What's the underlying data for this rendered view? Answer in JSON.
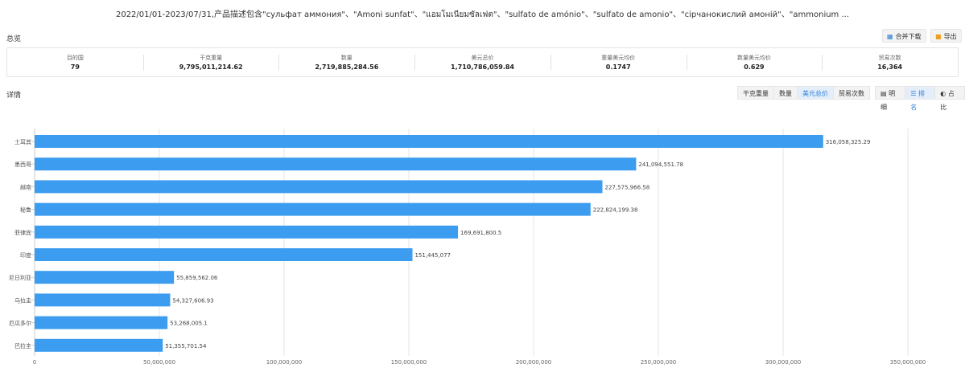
{
  "header": {
    "title": "2022/01/01-2023/07/31,产品描述包含\"сульфат аммония\"、\"Amoni sunfat\"、\"แอมโมเนียมซัลเฟต\"、\"sulfato de amónio\"、\"sulfato de amonio\"、\"сірчанокислий амоній\"、\"ammonium ..."
  },
  "overview": {
    "label": "总览",
    "merge_download_label": "合并下载",
    "merge_download_icon": "grid-icon",
    "export_label": "导出",
    "export_icon": "export-icon",
    "stats": [
      {
        "label": "目的国",
        "value": "79"
      },
      {
        "label": "干克重量",
        "value": "9,795,011,214.62"
      },
      {
        "label": "数量",
        "value": "2,719,885,284.56"
      },
      {
        "label": "美元总价",
        "value": "1,710,786,059.84"
      },
      {
        "label": "重量美元均价",
        "value": "0.1747"
      },
      {
        "label": "数量美元均价",
        "value": "0.629"
      },
      {
        "label": "贸易次数",
        "value": "16,364"
      }
    ]
  },
  "details": {
    "label": "详情",
    "metric_tabs": [
      "干克重量",
      "数量",
      "美元总价",
      "贸易次数"
    ],
    "active_metric": "美元总价",
    "view_tabs": [
      {
        "label": "明细",
        "icon": "table-icon"
      },
      {
        "label": "排名",
        "icon": "ranking-icon"
      },
      {
        "label": "占比",
        "icon": "donut-icon"
      }
    ],
    "active_view": "排名"
  },
  "colors": {
    "bar": "#3b9cf0",
    "accent": "#2a7fd4",
    "grid": "#e6e6e6"
  },
  "chart_data": {
    "type": "bar",
    "orientation": "horizontal",
    "categories": [
      "土耳其",
      "墨西哥",
      "越南",
      "秘鲁",
      "菲律宾",
      "印度",
      "尼日利亚",
      "乌拉圭",
      "厄瓜多尔",
      "巴拉圭"
    ],
    "values": [
      316058325.29,
      241094551.78,
      227575966.58,
      222824199.38,
      169691800.5,
      151445077,
      55859562.06,
      54327606.93,
      53268005.1,
      51355701.54
    ],
    "data_labels": [
      "316,058,325.29",
      "241,094,551.78",
      "227,575,966.58",
      "222,824,199.38",
      "169,691,800.5",
      "151,445,077",
      "55,859,562.06",
      "54,327,606.93",
      "53,268,005.1",
      "51,355,701.54"
    ],
    "xlim": [
      0,
      350000000
    ],
    "xticks": [
      0,
      50000000,
      100000000,
      150000000,
      200000000,
      250000000,
      300000000,
      350000000
    ],
    "xtick_labels": [
      "0",
      "50,000,000",
      "100,000,000",
      "150,000,000",
      "200,000,000",
      "250,000,000",
      "300,000,000",
      "350,000,000"
    ],
    "grid": true
  }
}
